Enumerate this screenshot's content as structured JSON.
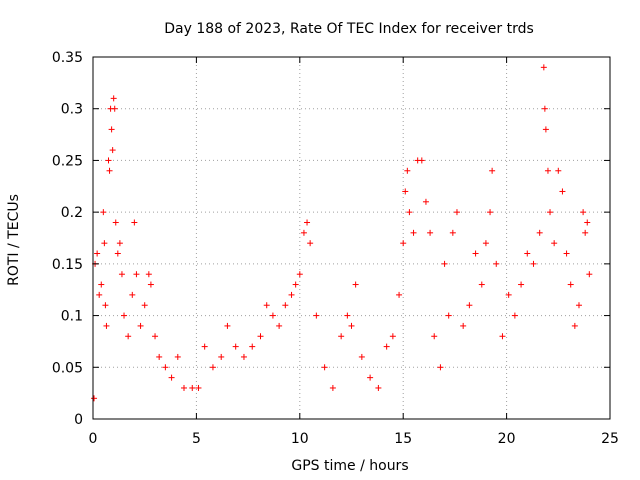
{
  "chart_data": {
    "type": "scatter",
    "title": "Day 188 of 2023, Rate Of TEC Index for receiver trds",
    "xlabel": "GPS time / hours",
    "ylabel": "ROTI / TECUs",
    "xlim": [
      0,
      25
    ],
    "ylim": [
      0,
      0.35
    ],
    "xticks": [
      0,
      5,
      10,
      15,
      20,
      25
    ],
    "xtick_labels": [
      "0",
      "5",
      "10",
      "15",
      "20",
      "25"
    ],
    "yticks": [
      0,
      0.05,
      0.1,
      0.15,
      0.2,
      0.25,
      0.3,
      0.35
    ],
    "ytick_labels": [
      "0",
      "0.05",
      "0.1",
      "0.15",
      "0.2",
      "0.25",
      "0.3",
      "0.35"
    ],
    "grid": true,
    "marker": "+",
    "color": "#ff0000",
    "series": [
      {
        "points": [
          [
            0.05,
            0.02
          ],
          [
            0.1,
            0.15
          ],
          [
            0.2,
            0.16
          ],
          [
            0.3,
            0.12
          ],
          [
            0.4,
            0.13
          ],
          [
            0.5,
            0.2
          ],
          [
            0.55,
            0.17
          ],
          [
            0.6,
            0.11
          ],
          [
            0.65,
            0.09
          ],
          [
            0.75,
            0.25
          ],
          [
            0.8,
            0.24
          ],
          [
            0.85,
            0.3
          ],
          [
            0.9,
            0.28
          ],
          [
            0.95,
            0.26
          ],
          [
            1.0,
            0.31
          ],
          [
            1.05,
            0.3
          ],
          [
            1.1,
            0.19
          ],
          [
            1.2,
            0.16
          ],
          [
            1.3,
            0.17
          ],
          [
            1.4,
            0.14
          ],
          [
            1.5,
            0.1
          ],
          [
            1.7,
            0.08
          ],
          [
            1.9,
            0.12
          ],
          [
            2.0,
            0.19
          ],
          [
            2.1,
            0.14
          ],
          [
            2.3,
            0.09
          ],
          [
            2.5,
            0.11
          ],
          [
            2.7,
            0.14
          ],
          [
            2.8,
            0.13
          ],
          [
            3.0,
            0.08
          ],
          [
            3.2,
            0.06
          ],
          [
            3.5,
            0.05
          ],
          [
            3.8,
            0.04
          ],
          [
            4.1,
            0.06
          ],
          [
            4.4,
            0.03
          ],
          [
            4.8,
            0.03
          ],
          [
            5.1,
            0.03
          ],
          [
            5.4,
            0.07
          ],
          [
            5.8,
            0.05
          ],
          [
            6.2,
            0.06
          ],
          [
            6.5,
            0.09
          ],
          [
            6.9,
            0.07
          ],
          [
            7.3,
            0.06
          ],
          [
            7.7,
            0.07
          ],
          [
            8.1,
            0.08
          ],
          [
            8.4,
            0.11
          ],
          [
            8.7,
            0.1
          ],
          [
            9.0,
            0.09
          ],
          [
            9.3,
            0.11
          ],
          [
            9.6,
            0.12
          ],
          [
            9.8,
            0.13
          ],
          [
            10.0,
            0.14
          ],
          [
            10.2,
            0.18
          ],
          [
            10.35,
            0.19
          ],
          [
            10.5,
            0.17
          ],
          [
            10.8,
            0.1
          ],
          [
            11.2,
            0.05
          ],
          [
            11.6,
            0.03
          ],
          [
            12.0,
            0.08
          ],
          [
            12.3,
            0.1
          ],
          [
            12.5,
            0.09
          ],
          [
            12.7,
            0.13
          ],
          [
            13.0,
            0.06
          ],
          [
            13.4,
            0.04
          ],
          [
            13.8,
            0.03
          ],
          [
            14.2,
            0.07
          ],
          [
            14.5,
            0.08
          ],
          [
            14.8,
            0.12
          ],
          [
            15.0,
            0.17
          ],
          [
            15.1,
            0.22
          ],
          [
            15.2,
            0.24
          ],
          [
            15.3,
            0.2
          ],
          [
            15.5,
            0.18
          ],
          [
            15.7,
            0.25
          ],
          [
            15.9,
            0.25
          ],
          [
            16.1,
            0.21
          ],
          [
            16.3,
            0.18
          ],
          [
            16.5,
            0.08
          ],
          [
            16.8,
            0.05
          ],
          [
            17.0,
            0.15
          ],
          [
            17.2,
            0.1
          ],
          [
            17.4,
            0.18
          ],
          [
            17.6,
            0.2
          ],
          [
            17.9,
            0.09
          ],
          [
            18.2,
            0.11
          ],
          [
            18.5,
            0.16
          ],
          [
            18.8,
            0.13
          ],
          [
            19.0,
            0.17
          ],
          [
            19.2,
            0.2
          ],
          [
            19.3,
            0.24
          ],
          [
            19.5,
            0.15
          ],
          [
            19.8,
            0.08
          ],
          [
            20.1,
            0.12
          ],
          [
            20.4,
            0.1
          ],
          [
            20.7,
            0.13
          ],
          [
            21.0,
            0.16
          ],
          [
            21.3,
            0.15
          ],
          [
            21.6,
            0.18
          ],
          [
            21.8,
            0.34
          ],
          [
            21.85,
            0.3
          ],
          [
            21.9,
            0.28
          ],
          [
            22.0,
            0.24
          ],
          [
            22.1,
            0.2
          ],
          [
            22.3,
            0.17
          ],
          [
            22.5,
            0.24
          ],
          [
            22.7,
            0.22
          ],
          [
            22.9,
            0.16
          ],
          [
            23.1,
            0.13
          ],
          [
            23.3,
            0.09
          ],
          [
            23.5,
            0.11
          ],
          [
            23.7,
            0.2
          ],
          [
            23.8,
            0.18
          ],
          [
            23.9,
            0.19
          ],
          [
            24.0,
            0.14
          ]
        ]
      }
    ]
  }
}
